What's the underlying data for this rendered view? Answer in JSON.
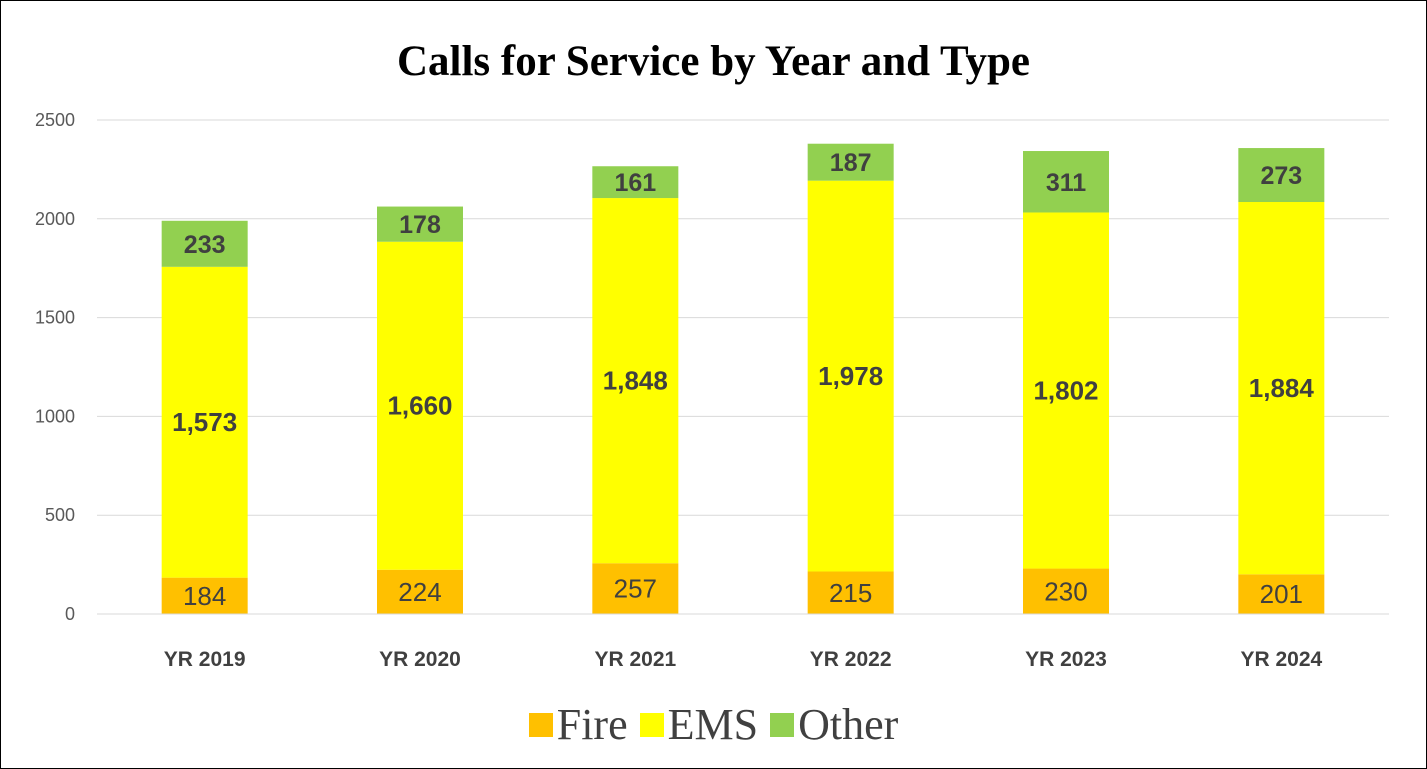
{
  "chart_data": {
    "type": "bar",
    "stacked": true,
    "title": "Calls for Service by Year and Type",
    "categories": [
      "YR 2019",
      "YR 2020",
      "YR 2021",
      "YR 2022",
      "YR 2023",
      "YR 2024"
    ],
    "series": [
      {
        "name": "Fire",
        "color": "#FFC000",
        "values": [
          184,
          224,
          257,
          215,
          230,
          201
        ],
        "labels": [
          "184",
          "224",
          "257",
          "215",
          "230",
          "201"
        ]
      },
      {
        "name": "EMS",
        "color": "#FFFF00",
        "values": [
          1573,
          1660,
          1848,
          1978,
          1802,
          1884
        ],
        "labels": [
          "1,573",
          "1,660",
          "1,848",
          "1,978",
          "1,802",
          "1,884"
        ]
      },
      {
        "name": "Other",
        "color": "#92D050",
        "values": [
          233,
          178,
          161,
          187,
          311,
          273
        ],
        "labels": [
          "233",
          "178",
          "161",
          "187",
          "311",
          "273"
        ]
      }
    ],
    "ylim": [
      0,
      2500
    ],
    "yticks": [
      "0",
      "500",
      "1000",
      "1500",
      "2000",
      "2500"
    ],
    "grid": true,
    "legend_position": "bottom"
  }
}
